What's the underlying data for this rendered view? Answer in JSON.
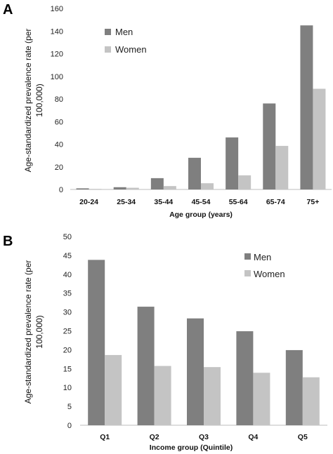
{
  "colors": {
    "men": "#7f7f7f",
    "women": "#c4c4c4",
    "axis": "#bdbdbd"
  },
  "chart_data": [
    {
      "panel": "A",
      "type": "bar",
      "categories": [
        "20-24",
        "25-34",
        "35-44",
        "45-54",
        "55-64",
        "65-74",
        "75+"
      ],
      "series": [
        {
          "name": "Men",
          "values": [
            1,
            2,
            10,
            28,
            46,
            76,
            145
          ]
        },
        {
          "name": "Women",
          "values": [
            0.5,
            1.5,
            3,
            5.5,
            12.5,
            38.5,
            89
          ]
        }
      ],
      "xlabel": "Age group (years)",
      "ylabel_lines": [
        "Age-standardized prevalence rate (per",
        "100,000)"
      ],
      "ylim": [
        0,
        160
      ],
      "yticks": [
        0,
        20,
        40,
        60,
        80,
        100,
        120,
        140,
        160
      ],
      "grid": false,
      "legend": "top-left"
    },
    {
      "panel": "B",
      "type": "bar",
      "categories": [
        "Q1",
        "Q2",
        "Q3",
        "Q4",
        "Q5"
      ],
      "series": [
        {
          "name": "Men",
          "values": [
            43.8,
            31.4,
            28.3,
            24.9,
            19.9
          ]
        },
        {
          "name": "Women",
          "values": [
            18.6,
            15.7,
            15.4,
            13.9,
            12.7
          ]
        }
      ],
      "xlabel": "Income group (Quintile)",
      "ylabel_lines": [
        "Age-standardized prevalence rate (per",
        "100,000)"
      ],
      "ylim": [
        0,
        50
      ],
      "yticks": [
        0,
        5,
        10,
        15,
        20,
        25,
        30,
        35,
        40,
        45,
        50
      ],
      "grid": false,
      "legend": "top-right"
    }
  ]
}
